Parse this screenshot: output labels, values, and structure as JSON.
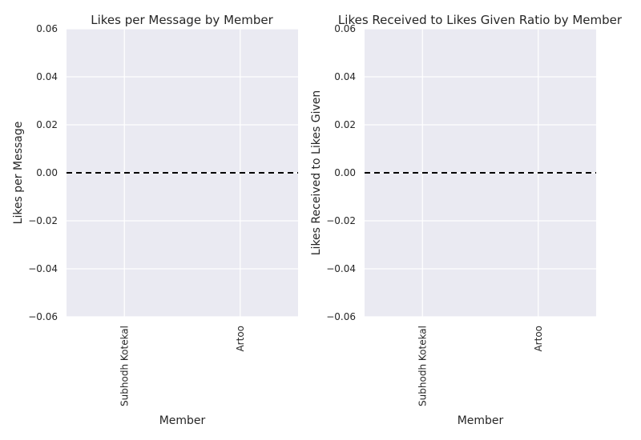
{
  "chart_data": [
    {
      "type": "bar",
      "title": "Likes per Message by Member",
      "xlabel": "Member",
      "ylabel": "Likes per Message",
      "categories": [
        "Subhodh Kotekal",
        "Artoo"
      ],
      "values": [
        0,
        0
      ],
      "ylim": [
        -0.06,
        0.06
      ],
      "yticks": [
        "0.06",
        "0.04",
        "0.02",
        "0.00",
        "−0.02",
        "−0.04",
        "−0.06"
      ],
      "reference_line": 0,
      "grid": true,
      "background": "#eaeaf2",
      "grid_color": "#ffffff",
      "reference_line_color": "#000000"
    },
    {
      "type": "bar",
      "title": "Likes Received to Likes Given Ratio by Member",
      "xlabel": "Member",
      "ylabel": "Likes Received to Likes Given",
      "categories": [
        "Subhodh Kotekal",
        "Artoo"
      ],
      "values": [
        0,
        0
      ],
      "ylim": [
        -0.06,
        0.06
      ],
      "yticks": [
        "0.06",
        "0.04",
        "0.02",
        "0.00",
        "−0.02",
        "−0.04",
        "−0.06"
      ],
      "reference_line": 0,
      "grid": true,
      "background": "#eaeaf2",
      "grid_color": "#ffffff",
      "reference_line_color": "#000000"
    }
  ]
}
